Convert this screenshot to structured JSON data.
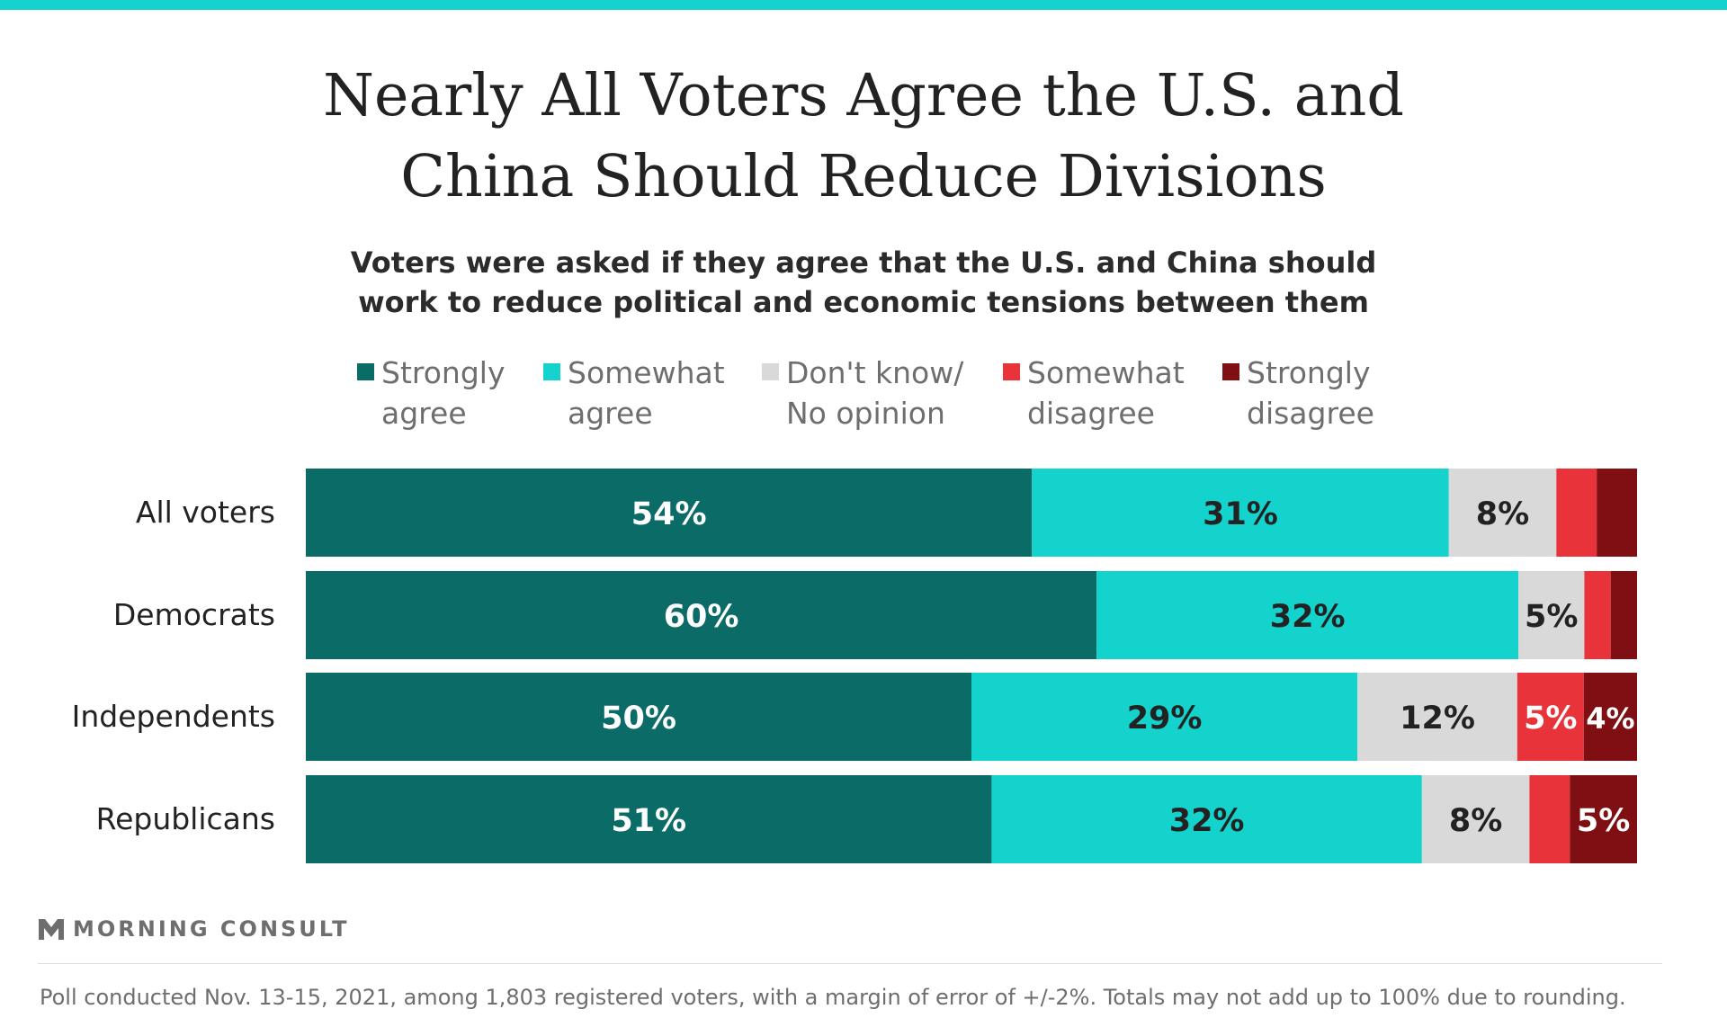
{
  "title_lines": [
    "Nearly All Voters Agree the U.S. and",
    "China Should Reduce Divisions"
  ],
  "subtitle_lines": [
    "Voters were asked if they agree that the U.S. and China should",
    "work to reduce political and economic tensions between them"
  ],
  "legend": [
    {
      "lines": [
        "Strongly",
        "agree"
      ],
      "color": "#0b6b66"
    },
    {
      "lines": [
        "Somewhat",
        "agree"
      ],
      "color": "#14d2cc"
    },
    {
      "lines": [
        "Don't know/",
        "No opinion"
      ],
      "color": "#d9d9d9"
    },
    {
      "lines": [
        "Somewhat",
        "disagree"
      ],
      "color": "#e8333a"
    },
    {
      "lines": [
        "Strongly",
        "disagree"
      ],
      "color": "#7f0f13"
    }
  ],
  "chart_data": {
    "type": "bar",
    "orientation": "horizontal-stacked-100",
    "categories": [
      "All voters",
      "Democrats",
      "Independents",
      "Republicans"
    ],
    "series": [
      {
        "name": "Strongly agree",
        "color": "#0b6b66",
        "label_color": "#ffffff",
        "values": [
          54,
          60,
          50,
          51
        ],
        "labels": [
          "54%",
          "60%",
          "50%",
          "51%"
        ]
      },
      {
        "name": "Somewhat agree",
        "color": "#14d2cc",
        "label_color": "#222222",
        "values": [
          31,
          32,
          29,
          32
        ],
        "labels": [
          "31%",
          "32%",
          "29%",
          "32%"
        ]
      },
      {
        "name": "Don't know/No opinion",
        "color": "#d9d9d9",
        "label_color": "#222222",
        "values": [
          8,
          5,
          12,
          8
        ],
        "labels": [
          "8%",
          "5%",
          "12%",
          "8%"
        ]
      },
      {
        "name": "Somewhat disagree",
        "color": "#e8333a",
        "label_color": "#ffffff",
        "values": [
          3,
          2,
          5,
          3
        ],
        "labels": [
          "",
          "",
          "5%",
          ""
        ]
      },
      {
        "name": "Strongly disagree",
        "color": "#7f0f13",
        "label_color": "#ffffff",
        "values": [
          3,
          2,
          4,
          5
        ],
        "labels": [
          "",
          "",
          "4%",
          "5%"
        ]
      }
    ],
    "xlim": [
      0,
      100
    ],
    "legend_position": "top"
  },
  "footer": {
    "logo_text": "MORNING CONSULT",
    "footnote": "Poll conducted Nov. 13-15, 2021, among 1,803 registered voters, with a margin of error of +/-2%. Totals may not add up to 100% due to rounding."
  }
}
